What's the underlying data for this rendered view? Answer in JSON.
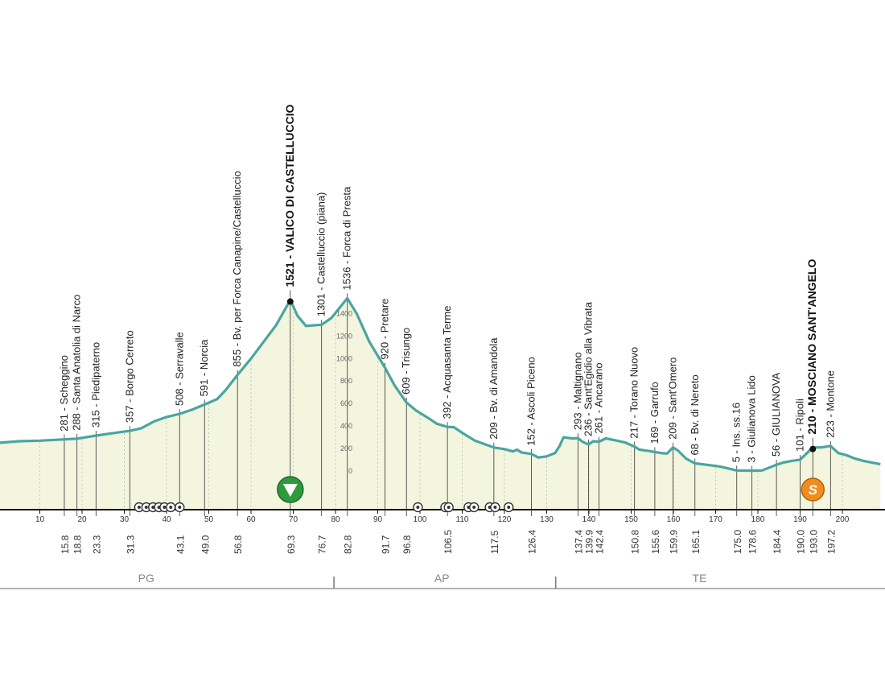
{
  "chart_data": {
    "type": "area",
    "title": "",
    "xlabel": "",
    "ylabel": "",
    "xlim": [
      0,
      209
    ],
    "ylim": [
      0,
      1600
    ],
    "x_ticks": [
      10,
      20,
      30,
      40,
      50,
      60,
      70,
      80,
      90,
      100,
      110,
      120,
      130,
      140,
      150,
      160,
      170,
      180,
      190,
      200
    ],
    "y_ticks": [
      0,
      200,
      400,
      600,
      800,
      1000,
      1200,
      1400
    ],
    "profile": [
      [
        0,
        250
      ],
      [
        5,
        265
      ],
      [
        10,
        270
      ],
      [
        15.8,
        281
      ],
      [
        18.8,
        288
      ],
      [
        23.3,
        315
      ],
      [
        27,
        335
      ],
      [
        31.3,
        357
      ],
      [
        34,
        380
      ],
      [
        37,
        440
      ],
      [
        40,
        480
      ],
      [
        43.1,
        508
      ],
      [
        46,
        545
      ],
      [
        49.0,
        591
      ],
      [
        52,
        640
      ],
      [
        54,
        720
      ],
      [
        56.8,
        855
      ],
      [
        60,
        1000
      ],
      [
        63,
        1150
      ],
      [
        66,
        1300
      ],
      [
        69.3,
        1521
      ],
      [
        71,
        1380
      ],
      [
        73,
        1290
      ],
      [
        76.7,
        1301
      ],
      [
        79,
        1360
      ],
      [
        82.8,
        1536
      ],
      [
        85,
        1400
      ],
      [
        88,
        1150
      ],
      [
        91.7,
        920
      ],
      [
        94,
        760
      ],
      [
        96.8,
        609
      ],
      [
        99,
        540
      ],
      [
        102,
        470
      ],
      [
        104,
        420
      ],
      [
        106.5,
        392
      ],
      [
        108,
        390
      ],
      [
        110,
        340
      ],
      [
        113,
        270
      ],
      [
        117.5,
        209
      ],
      [
        120,
        195
      ],
      [
        122,
        175
      ],
      [
        123,
        190
      ],
      [
        124,
        165
      ],
      [
        126.4,
        152
      ],
      [
        128,
        120
      ],
      [
        130,
        130
      ],
      [
        132,
        160
      ],
      [
        133,
        220
      ],
      [
        134,
        300
      ],
      [
        136,
        290
      ],
      [
        137.4,
        293
      ],
      [
        138.5,
        260
      ],
      [
        139.9,
        236
      ],
      [
        141,
        265
      ],
      [
        142.4,
        261
      ],
      [
        144,
        290
      ],
      [
        146,
        275
      ],
      [
        148.5,
        255
      ],
      [
        150.8,
        217
      ],
      [
        152,
        190
      ],
      [
        154,
        180
      ],
      [
        155.6,
        169
      ],
      [
        157,
        160
      ],
      [
        158.5,
        155
      ],
      [
        159.9,
        209
      ],
      [
        161,
        185
      ],
      [
        163,
        110
      ],
      [
        165.1,
        68
      ],
      [
        168,
        55
      ],
      [
        171,
        40
      ],
      [
        175.0,
        5
      ],
      [
        178.6,
        3
      ],
      [
        181,
        5
      ],
      [
        184.4,
        56
      ],
      [
        186,
        75
      ],
      [
        188,
        90
      ],
      [
        190.0,
        101
      ],
      [
        193.0,
        210
      ],
      [
        195,
        210
      ],
      [
        197.2,
        223
      ],
      [
        199,
        160
      ],
      [
        201,
        140
      ],
      [
        203,
        110
      ],
      [
        205,
        90
      ],
      [
        209,
        60
      ]
    ],
    "places": [
      {
        "km": "15.8",
        "label": "281 - Scheggino"
      },
      {
        "km": "18.8",
        "label": "288 - Santa Anatolia di Narco"
      },
      {
        "km": "23.3",
        "label": "315 - Piedipaterno"
      },
      {
        "km": "31.3",
        "label": "357 - Borgo Cerreto"
      },
      {
        "km": "43.1",
        "label": "508 - Serravalle"
      },
      {
        "km": "49.0",
        "label": "591 - Norcia"
      },
      {
        "km": "56.8",
        "label": "855 - Bv. per Forca Canapine/Castelluccio"
      },
      {
        "km": "69.3",
        "label": "1521 - VALICO DI CASTELLUCCIO",
        "bold": true
      },
      {
        "km": "76.7",
        "label": "1301 - Castelluccio (piana)"
      },
      {
        "km": "82.8",
        "label": "1536 - Forca di Presta"
      },
      {
        "km": "91.7",
        "label": "920 - Pretare"
      },
      {
        "km": "96.8",
        "label": "609 - Trisungo"
      },
      {
        "km": "106.5",
        "label": "392 - Acquasanta Terme"
      },
      {
        "km": "117.5",
        "label": "209 - Bv. di Amandola"
      },
      {
        "km": "126.4",
        "label": "152 - Ascoli Piceno"
      },
      {
        "km": "137.4",
        "label": "293 - Maltignano"
      },
      {
        "km": "139.9",
        "label": "236 - Sant'Egidio alla Vibrata"
      },
      {
        "km": "142.4",
        "label": "261 - Ancarano"
      },
      {
        "km": "150.8",
        "label": "217 - Torano Nuovo"
      },
      {
        "km": "155.6",
        "label": "169 - Garrufo"
      },
      {
        "km": "159.9",
        "label": "209 - Sant'Omero"
      },
      {
        "km": "165.1",
        "label": "68 - Bv. di Nereto"
      },
      {
        "km": "175.0",
        "label": "5 - Ins. ss.16"
      },
      {
        "km": "178.6",
        "label": "3 - Giulianova Lido"
      },
      {
        "km": "184.4",
        "label": "56 - GIULIANOVA"
      },
      {
        "km": "190.0",
        "label": "101 - Ripoli"
      },
      {
        "km": "193.0",
        "label": "210 - MOSCIANO SANT'ANGELO",
        "bold": true
      },
      {
        "km": "197.2",
        "label": "223 - Montone"
      }
    ],
    "provinces": [
      {
        "label": "PG",
        "km_mid": 31
      },
      {
        "label": "AP",
        "km_mid": 101
      },
      {
        "label": "TE",
        "km_mid": 162
      }
    ],
    "province_boundaries_km": [
      66.3,
      118.8
    ],
    "roundabouts_km": [
      33.5,
      35.2,
      36.8,
      38.2,
      39.5,
      41.0,
      43.1,
      99.5,
      106.0,
      106.8,
      111.5,
      112.8,
      116.5,
      117.8,
      121.0
    ],
    "markers": [
      {
        "km": 69.3,
        "type": "gpm",
        "icon": "green-triangle-icon"
      },
      {
        "km": 193.0,
        "type": "sprint",
        "symbol": "S",
        "icon": "sprint-icon"
      }
    ],
    "colors": {
      "profile_line": "#4aa5a0",
      "profile_fill": "#f3f5de",
      "gpm": "#2d9b3c",
      "sprint": "#f08d1c",
      "axis": "#111111",
      "province_text": "#888888"
    }
  }
}
